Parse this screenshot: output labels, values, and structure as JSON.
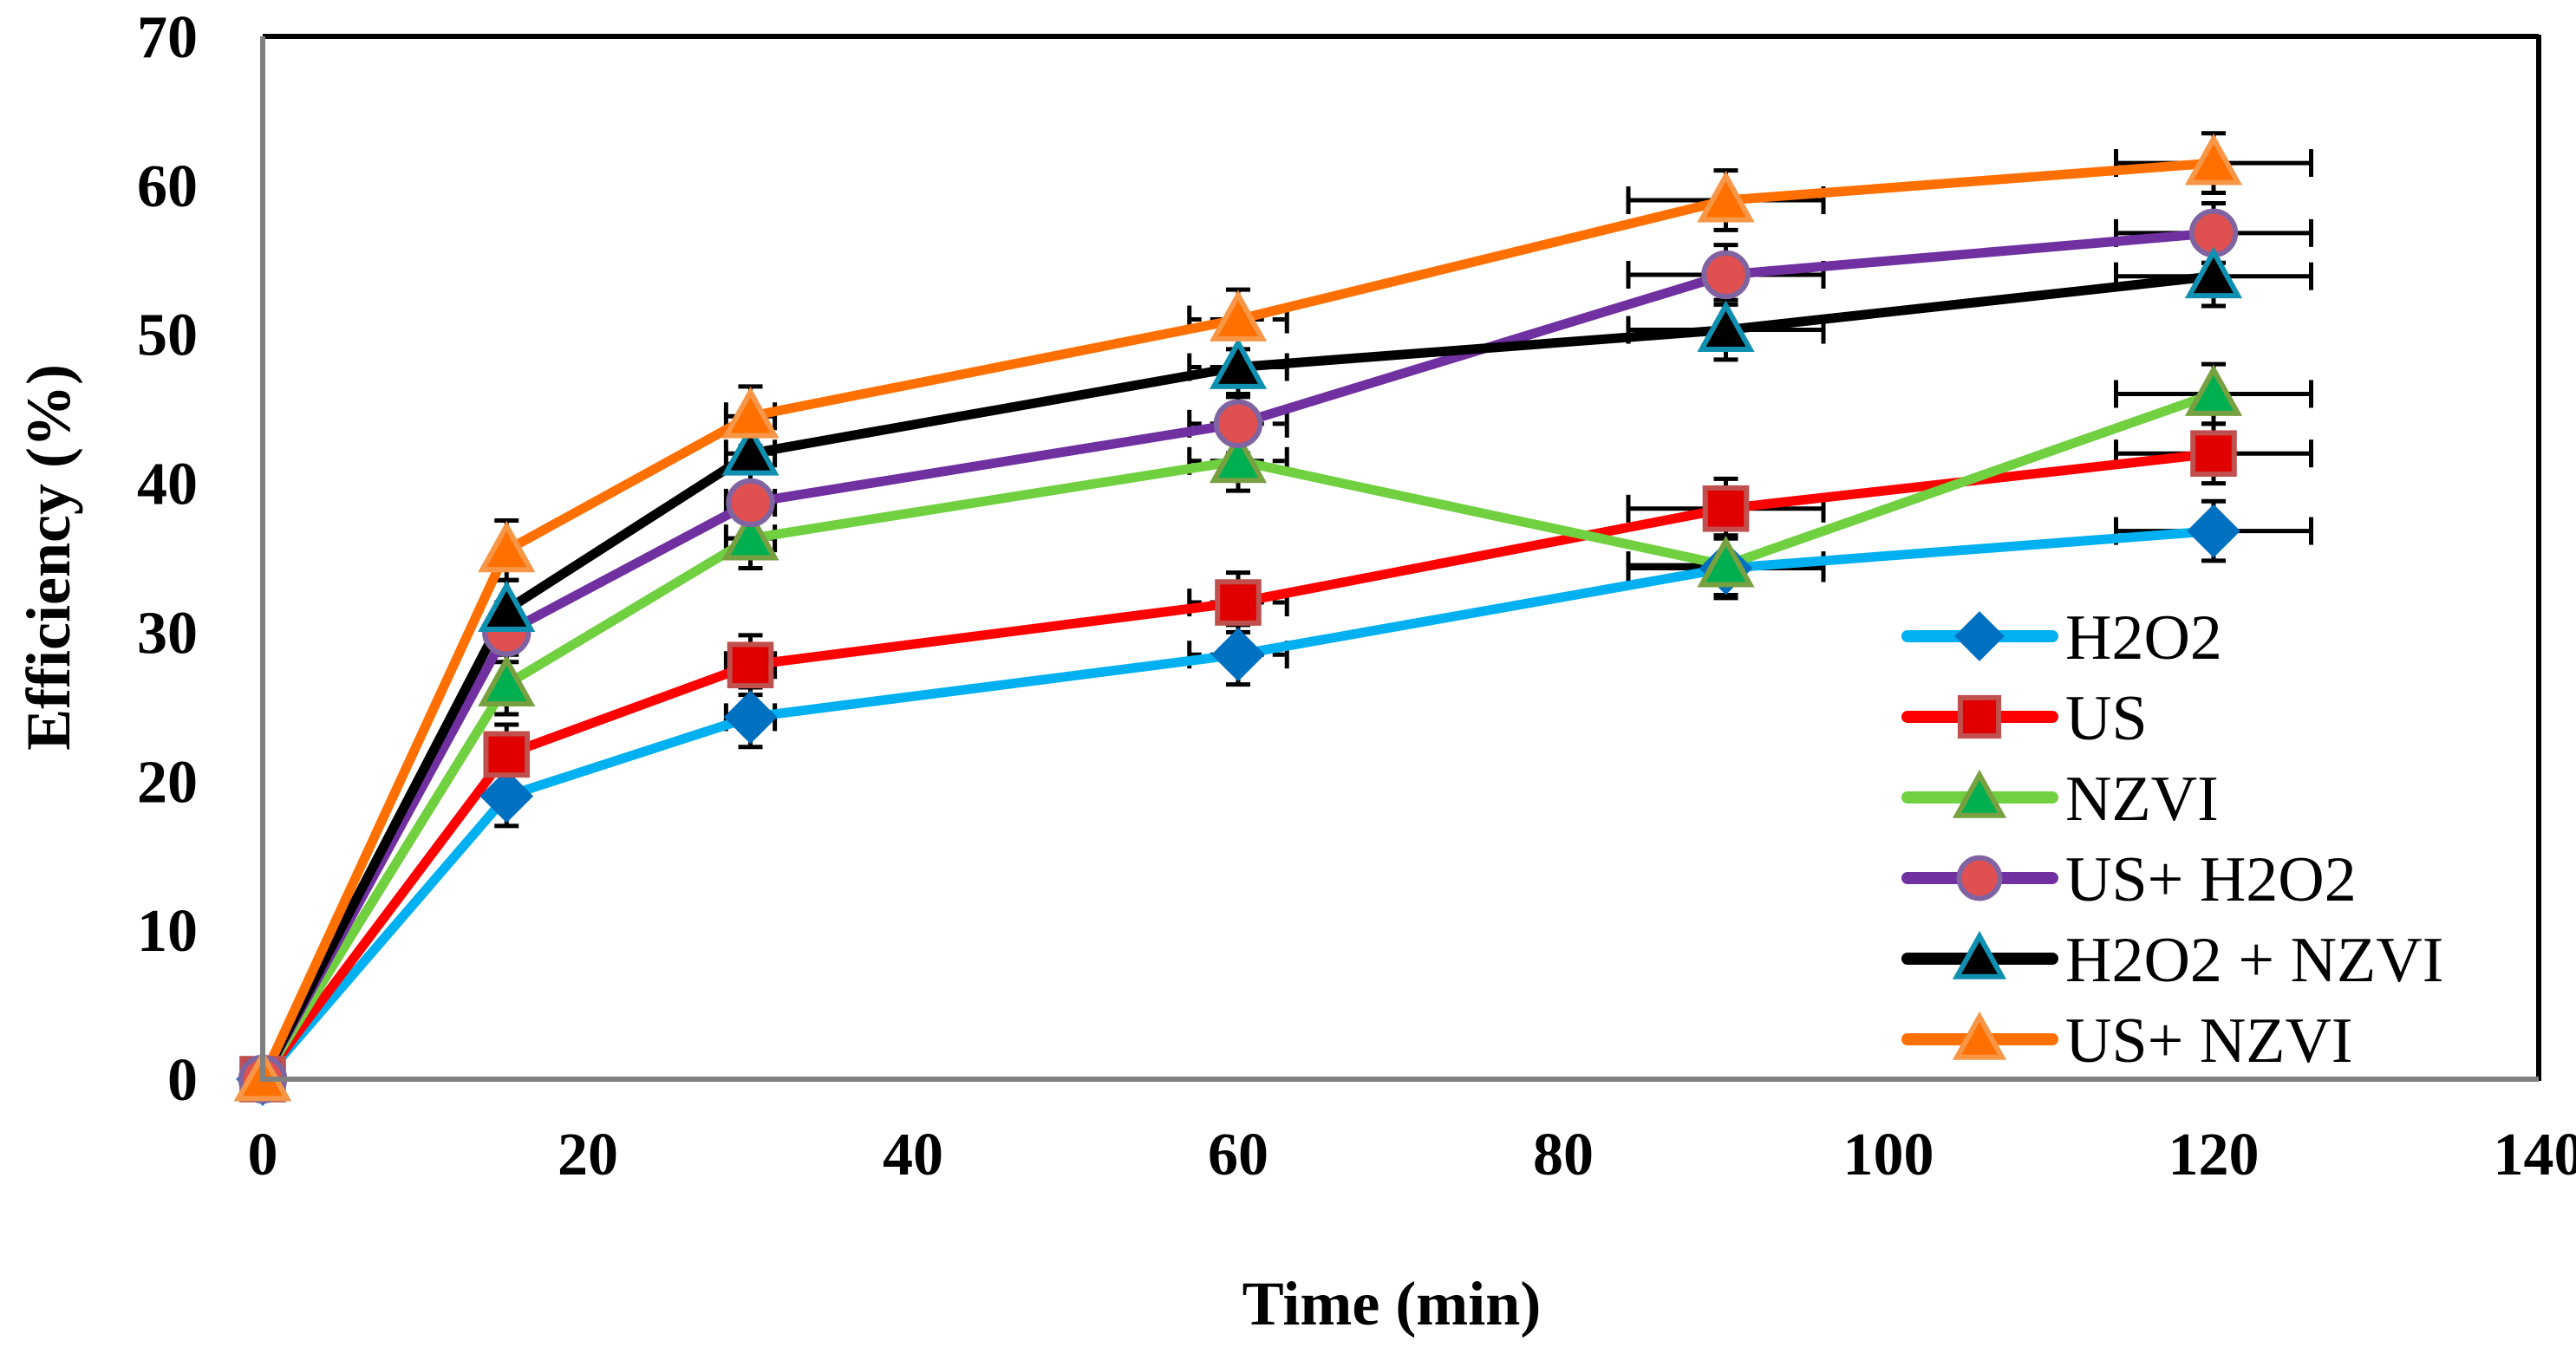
{
  "chart_data": {
    "type": "line",
    "title": "",
    "xlabel": "Time (min)",
    "ylabel": "Efficiency (%)",
    "xlim": [
      0,
      140
    ],
    "ylim": [
      0,
      70
    ],
    "xticks": [
      0,
      20,
      40,
      60,
      80,
      100,
      120,
      140
    ],
    "yticks": [
      0,
      10,
      20,
      30,
      40,
      50,
      60,
      70
    ],
    "grid": false,
    "legend_position": "bottom-right",
    "x": [
      0,
      15,
      30,
      60,
      90,
      120
    ],
    "x_error": [
      0,
      0,
      1.5,
      3,
      6,
      6
    ],
    "y_error": 2,
    "series": [
      {
        "name": "H2O2",
        "values": [
          0,
          19,
          24.3,
          28.5,
          34.3,
          36.8
        ],
        "line_color": "#00b0f0",
        "marker": "diamond",
        "marker_fill": "#0070c0",
        "marker_edge": "#0070c0"
      },
      {
        "name": "US",
        "values": [
          0,
          21.8,
          27.8,
          32,
          38.3,
          42
        ],
        "line_color": "#ff0000",
        "marker": "square",
        "marker_fill": "#e00000",
        "marker_edge": "#c0504d"
      },
      {
        "name": "NZVI",
        "values": [
          0,
          26.5,
          36.3,
          41.5,
          34.5,
          46
        ],
        "line_color": "#70d040",
        "marker": "triangle",
        "marker_fill": "#00b050",
        "marker_edge": "#77a040"
      },
      {
        "name": "US+ H2O2",
        "values": [
          0,
          30,
          38.7,
          44,
          54,
          56.8
        ],
        "line_color": "#7030a0",
        "marker": "circle",
        "marker_fill": "#e05050",
        "marker_edge": "#8064a2"
      },
      {
        "name": "H2O2 + NZVI",
        "values": [
          0,
          31.5,
          42,
          47.8,
          50.3,
          53.9
        ],
        "line_color": "#000000",
        "marker": "triangle",
        "marker_fill": "#000000",
        "marker_edge": "#1090b0"
      },
      {
        "name": "US+ NZVI",
        "values": [
          0,
          35.5,
          44.5,
          51,
          59,
          61.5
        ],
        "line_color": "#ff7000",
        "marker": "triangle",
        "marker_fill": "#ff7000",
        "marker_edge": "#f79646"
      }
    ]
  }
}
